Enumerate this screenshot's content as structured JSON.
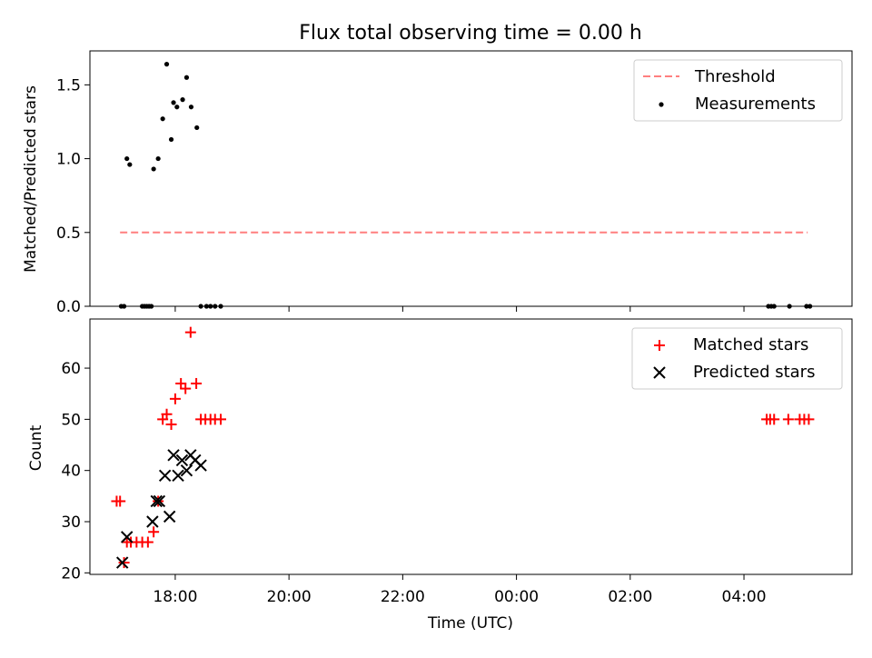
{
  "chart_data": [
    {
      "type": "scatter",
      "title": "Flux total observing time = 0.00 h",
      "ylabel": "Matched/Predicted stars",
      "xlabel": "",
      "xlim_hours": [
        16.5,
        29.9
      ],
      "ylim": [
        0,
        1.73
      ],
      "yticks": [
        0.0,
        0.5,
        1.0,
        1.5
      ],
      "ytick_labels": [
        "0.0",
        "0.5",
        "1.0",
        "1.5"
      ],
      "threshold": {
        "name": "Threshold",
        "value": 0.5,
        "x_start": 17.03,
        "x_end": 29.12,
        "color": "#ff7f7f"
      },
      "series": [
        {
          "name": "Measurements",
          "color": "#000000",
          "marker": "dot",
          "x": [
            17.05,
            17.1,
            17.15,
            17.2,
            17.42,
            17.46,
            17.5,
            17.54,
            17.58,
            17.62,
            17.7,
            17.78,
            17.85,
            17.93,
            17.97,
            18.03,
            18.13,
            18.2,
            18.28,
            18.38,
            18.45,
            18.55,
            18.62,
            18.7,
            18.8,
            28.43,
            28.48,
            28.53,
            28.8,
            29.1,
            29.16
          ],
          "y": [
            0,
            0,
            1.0,
            0.96,
            0,
            0,
            0,
            0,
            0,
            0.93,
            1.0,
            1.27,
            1.64,
            1.13,
            1.38,
            1.35,
            1.4,
            1.55,
            1.35,
            1.21,
            0,
            0,
            0,
            0,
            0,
            0,
            0,
            0,
            0,
            0,
            0
          ]
        }
      ],
      "legend": [
        "Threshold",
        "Measurements"
      ],
      "legend_position": "top-right"
    },
    {
      "type": "scatter",
      "title": "",
      "ylabel": "Count",
      "xlabel": "Time (UTC)",
      "xlim_hours": [
        16.5,
        29.9
      ],
      "ylim": [
        19.7,
        69.6
      ],
      "yticks": [
        20,
        30,
        40,
        50,
        60
      ],
      "ytick_labels": [
        "20",
        "30",
        "40",
        "50",
        "60"
      ],
      "xticks_hours": [
        18,
        20,
        22,
        24,
        26,
        28
      ],
      "xtick_labels": [
        "18:00",
        "20:00",
        "22:00",
        "00:00",
        "02:00",
        "04:00"
      ],
      "series": [
        {
          "name": "Matched stars",
          "color": "#ff0000",
          "marker": "plus",
          "x": [
            16.97,
            17.03,
            17.1,
            17.15,
            17.22,
            17.32,
            17.42,
            17.52,
            17.62,
            17.7,
            17.78,
            17.85,
            17.93,
            18.0,
            18.1,
            18.18,
            18.27,
            18.37,
            18.45,
            18.53,
            18.62,
            18.7,
            18.8,
            28.4,
            28.46,
            28.53,
            28.78,
            28.98,
            29.06,
            29.14
          ],
          "y": [
            34,
            34,
            22,
            26,
            26,
            26,
            26,
            26,
            28,
            34,
            50,
            51,
            49,
            54,
            57,
            56,
            67,
            57,
            50,
            50,
            50,
            50,
            50,
            50,
            50,
            50,
            50,
            50,
            50,
            50
          ]
        },
        {
          "name": "Predicted stars",
          "color": "#000000",
          "marker": "x",
          "x": [
            17.07,
            17.15,
            17.6,
            17.67,
            17.72,
            17.82,
            17.9,
            17.97,
            18.05,
            18.12,
            18.2,
            18.27,
            18.35,
            18.45
          ],
          "y": [
            22,
            27,
            30,
            34,
            34,
            39,
            31,
            43,
            39,
            42,
            40,
            43,
            42,
            41
          ]
        }
      ],
      "legend": [
        "Matched stars",
        "Predicted stars"
      ],
      "legend_position": "top-right"
    }
  ]
}
